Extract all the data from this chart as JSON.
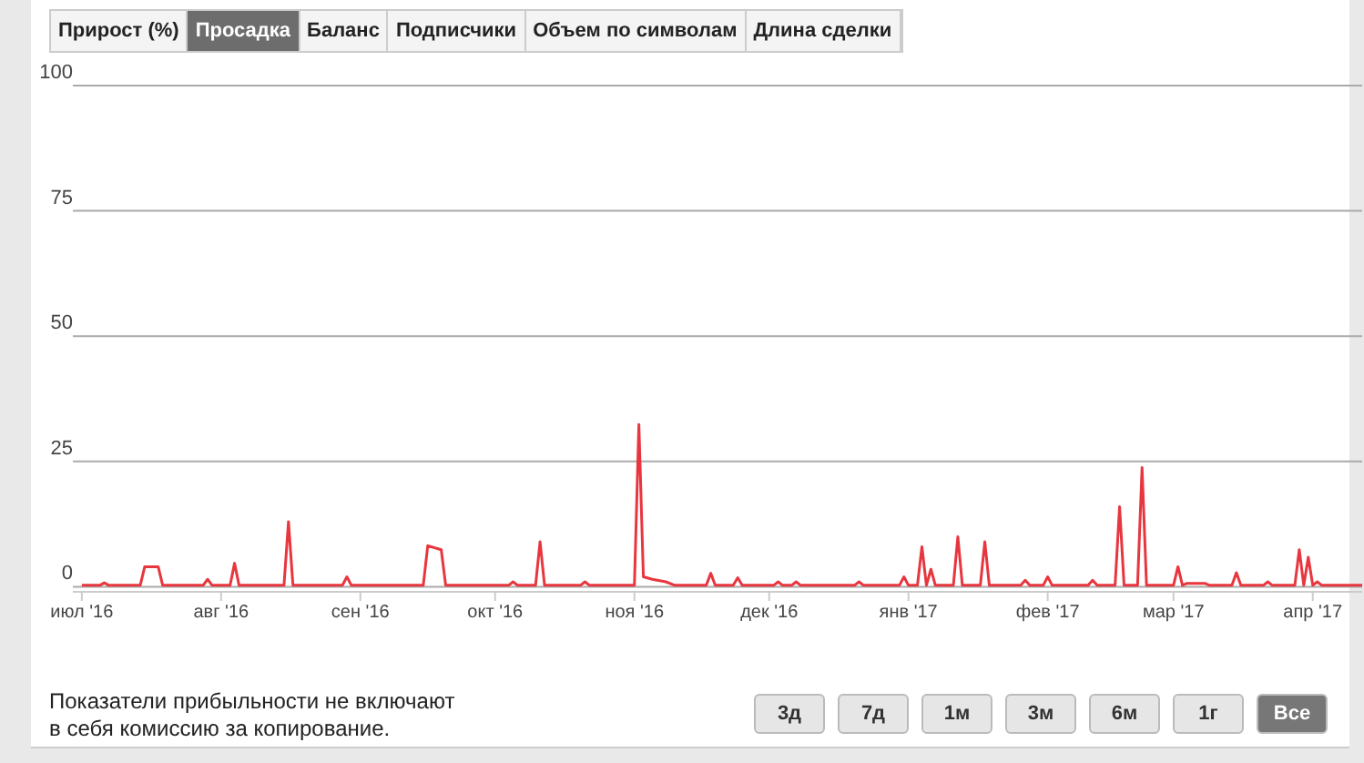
{
  "chart_data": {
    "type": "line",
    "x": [
      "2016-07-01",
      "2016-07-05",
      "2016-07-06",
      "2016-07-07",
      "2016-07-14",
      "2016-07-15",
      "2016-07-18",
      "2016-07-19",
      "2016-07-28",
      "2016-07-29",
      "2016-07-30",
      "2016-08-03",
      "2016-08-04",
      "2016-08-05",
      "2016-08-15",
      "2016-08-16",
      "2016-08-17",
      "2016-08-28",
      "2016-08-29",
      "2016-08-30",
      "2016-09-15",
      "2016-09-16",
      "2016-09-19",
      "2016-09-20",
      "2016-10-04",
      "2016-10-05",
      "2016-10-06",
      "2016-10-10",
      "2016-10-11",
      "2016-10-12",
      "2016-10-20",
      "2016-10-21",
      "2016-10-22",
      "2016-11-01",
      "2016-11-02",
      "2016-11-03",
      "2016-11-05",
      "2016-11-08",
      "2016-11-10",
      "2016-11-17",
      "2016-11-18",
      "2016-11-19",
      "2016-11-23",
      "2016-11-24",
      "2016-11-25",
      "2016-12-02",
      "2016-12-03",
      "2016-12-04",
      "2016-12-06",
      "2016-12-07",
      "2016-12-08",
      "2016-12-20",
      "2016-12-21",
      "2016-12-22",
      "2016-12-30",
      "2016-12-31",
      "2017-01-01",
      "2017-01-03",
      "2017-01-04",
      "2017-01-05",
      "2017-01-06",
      "2017-01-07",
      "2017-01-11",
      "2017-01-12",
      "2017-01-13",
      "2017-01-17",
      "2017-01-18",
      "2017-01-19",
      "2017-01-26",
      "2017-01-27",
      "2017-01-28",
      "2017-01-31",
      "2017-02-01",
      "2017-02-02",
      "2017-02-10",
      "2017-02-11",
      "2017-02-12",
      "2017-02-16",
      "2017-02-17",
      "2017-02-18",
      "2017-02-21",
      "2017-02-22",
      "2017-02-23",
      "2017-03-01",
      "2017-03-02",
      "2017-03-03",
      "2017-03-04",
      "2017-03-08",
      "2017-03-09",
      "2017-03-14",
      "2017-03-15",
      "2017-03-16",
      "2017-03-21",
      "2017-03-22",
      "2017-03-23",
      "2017-03-28",
      "2017-03-29",
      "2017-03-30",
      "2017-03-31",
      "2017-04-01",
      "2017-04-02",
      "2017-04-03",
      "2017-04-12"
    ],
    "values": [
      0.3,
      0.3,
      0.8,
      0.3,
      0.3,
      4,
      4,
      0.3,
      0.3,
      1.5,
      0.3,
      0.3,
      4.7,
      0.3,
      0.3,
      13,
      0.3,
      0.3,
      2,
      0.3,
      0.3,
      8.2,
      7.4,
      0.3,
      0.3,
      1,
      0.3,
      0.3,
      9,
      0.3,
      0.3,
      1,
      0.3,
      0.3,
      32.4,
      2,
      1.5,
      1,
      0.3,
      0.3,
      2.7,
      0.3,
      0.3,
      1.8,
      0.3,
      0.3,
      1,
      0.3,
      0.3,
      1,
      0.3,
      0.3,
      1,
      0.3,
      0.3,
      2,
      0.3,
      0.3,
      8,
      0.3,
      3.5,
      0.3,
      0.3,
      10,
      0.3,
      0.3,
      9,
      0.3,
      0.3,
      1.3,
      0.3,
      0.3,
      2,
      0.3,
      0.3,
      1.3,
      0.3,
      0.3,
      16,
      0.3,
      0.3,
      23.8,
      0.3,
      0.3,
      4,
      0.3,
      0.7,
      0.7,
      0.3,
      0.3,
      2.8,
      0.3,
      0.3,
      1,
      0.3,
      0.3,
      7.4,
      0.3,
      5.9,
      0.3,
      1,
      0.3,
      0.3
    ],
    "color": "#e8363f",
    "marker": "none",
    "line_style": "solid",
    "grid": "y",
    "xlim": [
      "2016-06-29",
      "2017-04-12"
    ],
    "xticks": [
      {
        "value": "2016-07-01",
        "label": "июл '16"
      },
      {
        "value": "2016-08-01",
        "label": "авг '16"
      },
      {
        "value": "2016-09-01",
        "label": "сен '16"
      },
      {
        "value": "2016-10-01",
        "label": "окт '16"
      },
      {
        "value": "2016-11-01",
        "label": "ноя '16"
      },
      {
        "value": "2016-12-01",
        "label": "дек '16"
      },
      {
        "value": "2017-01-01",
        "label": "янв '17"
      },
      {
        "value": "2017-02-01",
        "label": "фев '17"
      },
      {
        "value": "2017-03-01",
        "label": "мар '17"
      },
      {
        "value": "2017-04-01",
        "label": "апр '17"
      }
    ],
    "ylim": [
      -1,
      100
    ],
    "yticks": [
      0,
      25,
      50,
      75,
      100
    ],
    "annotations": [
      "Прирост (%)",
      "Просадка",
      "Баланс",
      "Подписчики",
      "Объем по символам",
      "Длина сделки",
      "Показатели прибыльности не включают в себя комиссию за копирование.",
      "3д",
      "7д",
      "1м",
      "3м",
      "6м",
      "1г",
      "Все"
    ]
  }
}
